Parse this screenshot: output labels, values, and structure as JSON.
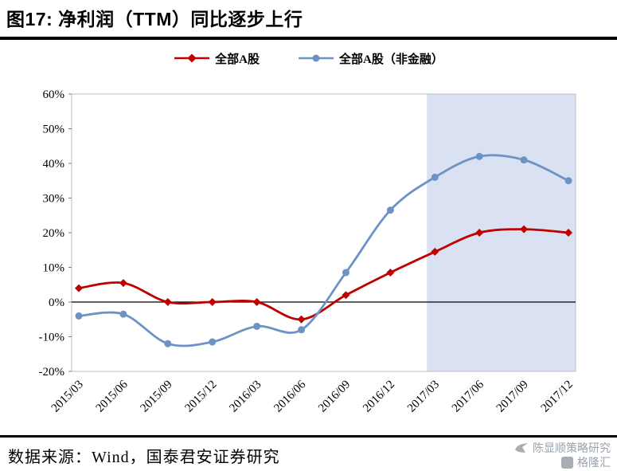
{
  "title": "图17: 净利润（TTM）同比逐步上行",
  "chart_data": {
    "type": "line",
    "line_style": "smooth",
    "categories": [
      "2015/03",
      "2015/06",
      "2015/09",
      "2015/12",
      "2016/03",
      "2016/06",
      "2016/09",
      "2016/12",
      "2017/03",
      "2017/06",
      "2017/09",
      "2017/12"
    ],
    "series": [
      {
        "name": "全部A股",
        "color": "#C00000",
        "marker": "diamond",
        "values": [
          4,
          5.5,
          0,
          0,
          0,
          -5,
          2,
          8.5,
          14.5,
          20,
          21,
          20
        ]
      },
      {
        "name": "全部A股（非金融）",
        "color": "#6D92C4",
        "marker": "circle",
        "values": [
          -4,
          -3.5,
          -12,
          -11.5,
          -7,
          -8,
          8.5,
          26.5,
          36,
          42,
          41,
          35
        ]
      }
    ],
    "ylim": [
      -20,
      60
    ],
    "ytick_step": 10,
    "ytick_labels": [
      "60%",
      "50%",
      "40%",
      "30%",
      "20%",
      "10%",
      "0%",
      "-10%",
      "-20%"
    ],
    "grid": false,
    "legend_position": "top",
    "plot_border_color": "#BFBFBF",
    "zero_line_color": "#000000",
    "highlight_region": {
      "from_category": "2017/03",
      "to": "end",
      "color": "#D9E1F2"
    }
  },
  "footer": {
    "source": "数据来源：Wind，国泰君安证券研究"
  },
  "watermark": {
    "line1": "陈显顺策略研究",
    "line2": "格隆汇"
  }
}
